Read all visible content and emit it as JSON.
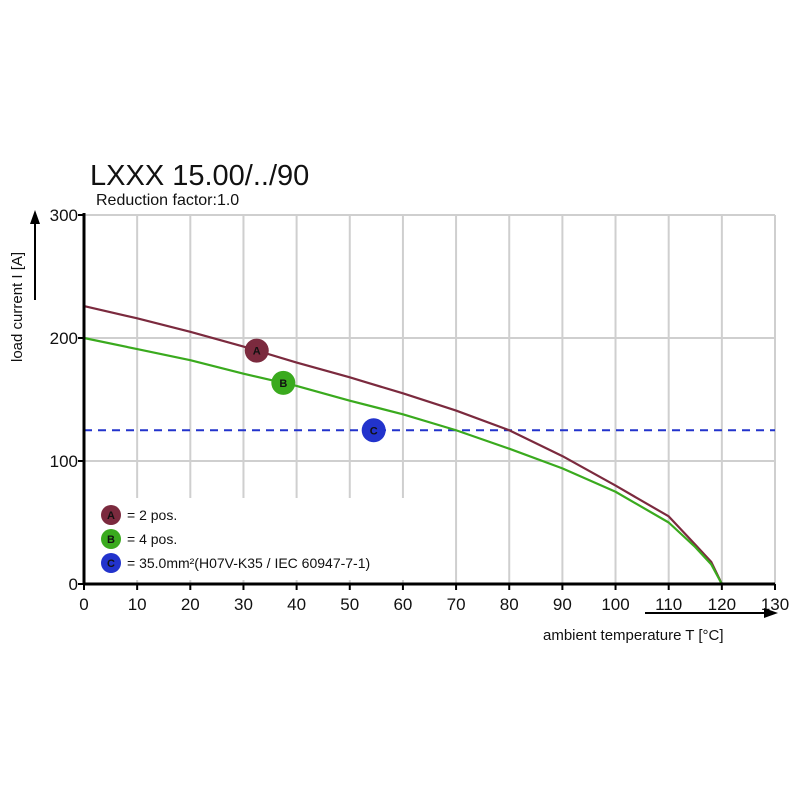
{
  "chart_data": {
    "type": "line",
    "title": "LXXX 15.00/../90",
    "subtitle": "Reduction factor:1.0",
    "xlabel": "ambient temperature T [°C]",
    "ylabel": "load current I [A]",
    "xlim": [
      0,
      130
    ],
    "ylim": [
      0,
      300
    ],
    "xticks": [
      0,
      10,
      20,
      30,
      40,
      50,
      60,
      70,
      80,
      90,
      100,
      110,
      120,
      130
    ],
    "yticks": [
      0,
      100,
      200,
      300
    ],
    "grid": true,
    "legend_placement": "bottom-left",
    "series": [
      {
        "marker": "A",
        "name": "= 2 pos.",
        "color": "#7b2a3e",
        "x": [
          0,
          10,
          20,
          30,
          40,
          50,
          60,
          70,
          80,
          90,
          100,
          110,
          115,
          118,
          120
        ],
        "y": [
          226,
          216,
          205,
          193,
          180,
          168,
          155,
          141,
          125,
          104,
          80,
          55,
          32,
          18,
          0
        ],
        "marker_x": 32.5
      },
      {
        "marker": "B",
        "name": "= 4 pos.",
        "color": "#3aaa1e",
        "x": [
          0,
          10,
          20,
          30,
          40,
          50,
          60,
          70,
          80,
          90,
          100,
          110,
          115,
          118,
          120
        ],
        "y": [
          200,
          191,
          182,
          171,
          161,
          149,
          138,
          125,
          110,
          94,
          75,
          50,
          30,
          16,
          0
        ],
        "marker_x": 37.5
      }
    ],
    "reference_line": {
      "marker": "C",
      "name": "= 35.0mm²(H07V-K35 / IEC 60947-7-1)",
      "color": "#2233cc",
      "y": 125,
      "marker_x": 54.5
    }
  }
}
